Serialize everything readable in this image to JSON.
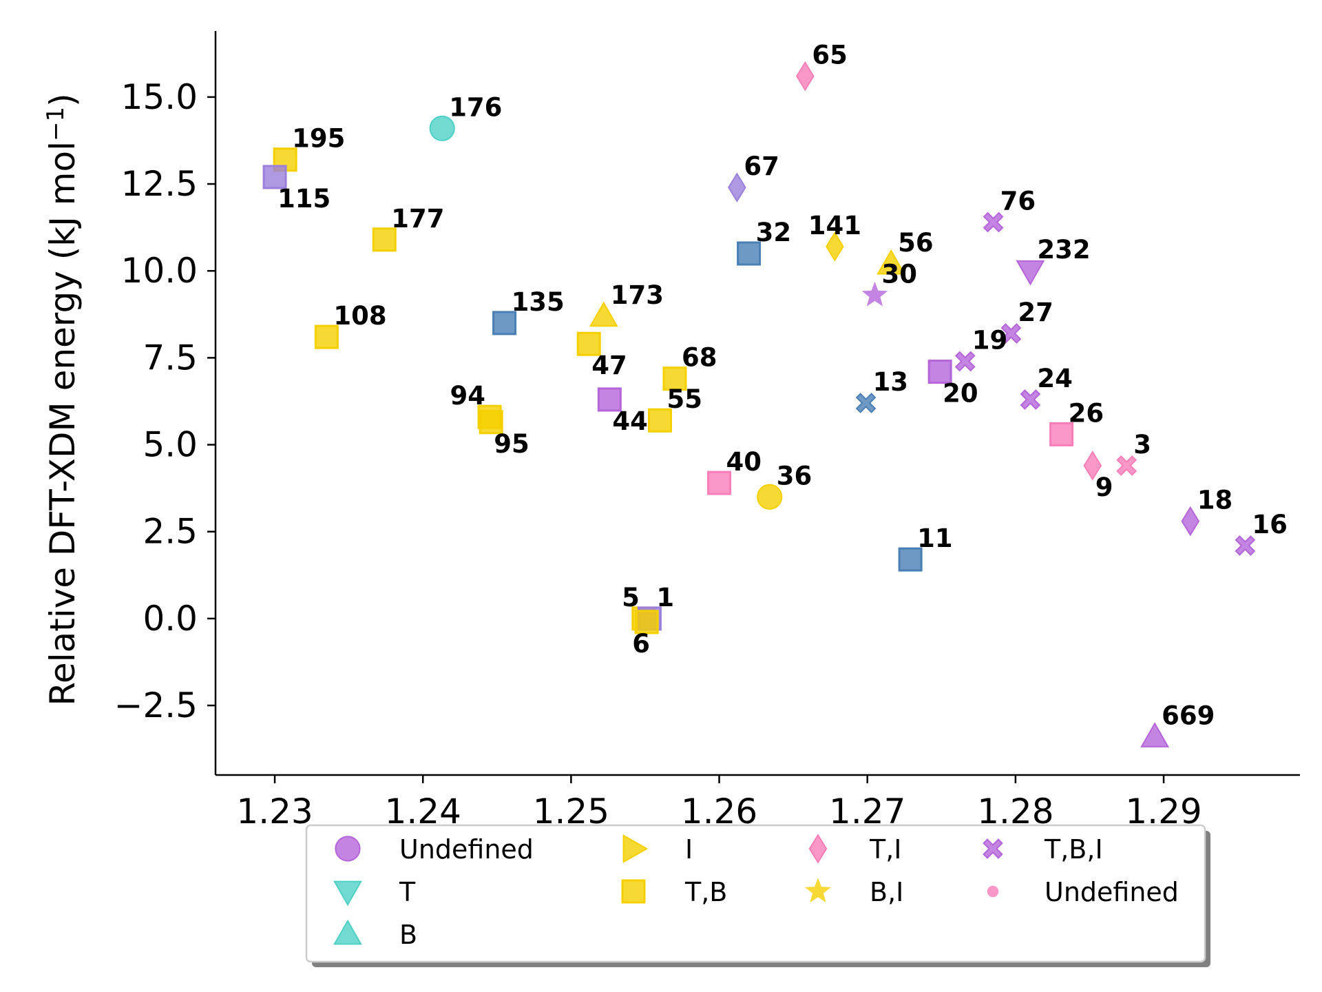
{
  "chart_data": {
    "type": "scatter",
    "title": "",
    "xlabel": "",
    "ylabel_main": "Relative DFT-XDM energy (kJ mol",
    "ylabel_sup": "−1",
    "ylabel_close": ")",
    "xlim": [
      1.226,
      1.2992
    ],
    "ylim": [
      -4.5,
      16.9
    ],
    "x_ticks": [
      1.23,
      1.24,
      1.25,
      1.26,
      1.27,
      1.28,
      1.29
    ],
    "x_tick_labels": [
      "1.23",
      "1.24",
      "1.25",
      "1.26",
      "1.27",
      "1.28",
      "1.29"
    ],
    "y_ticks": [
      -2.5,
      0.0,
      2.5,
      5.0,
      7.5,
      10.0,
      12.5,
      15.0
    ],
    "y_tick_labels": [
      "−2.5",
      "0.0",
      "2.5",
      "5.0",
      "7.5",
      "10.0",
      "12.5",
      "15.0"
    ],
    "grid": false,
    "legend_position": "bottom-center",
    "legend": [
      {
        "label": "Undefined",
        "marker": "circle",
        "color": "#b565d9"
      },
      {
        "label": "T",
        "marker": "triangle-down",
        "color": "#4fd1c5"
      },
      {
        "label": "B",
        "marker": "triangle-up",
        "color": "#4fd1c5"
      },
      {
        "label": "I",
        "marker": "triangle-right",
        "color": "#f5d000"
      },
      {
        "label": "T,B",
        "marker": "square",
        "color": "#f5d000"
      },
      {
        "label": "T,I",
        "marker": "diamond",
        "color": "#f77eb9"
      },
      {
        "label": "B,I",
        "marker": "star",
        "color": "#f5d000"
      },
      {
        "label": "T,B,I",
        "marker": "x",
        "color": "#b565d9"
      },
      {
        "label": "Undefined",
        "marker": "dot",
        "color": "#f77eb9"
      }
    ],
    "points": [
      {
        "label": "65",
        "x": 1.2658,
        "y": 15.6,
        "marker": "diamond",
        "color": "#f77eb9",
        "label_pos": "ur"
      },
      {
        "label": "176",
        "x": 1.2413,
        "y": 14.1,
        "marker": "circle",
        "color": "#4fd1c5",
        "label_pos": "ur"
      },
      {
        "label": "195",
        "x": 1.2307,
        "y": 13.2,
        "marker": "square",
        "color": "#f5d000",
        "label_pos": "ur"
      },
      {
        "label": "115",
        "x": 1.23,
        "y": 12.7,
        "marker": "square",
        "color": "#9b7fdb",
        "label_pos": "lr"
      },
      {
        "label": "67",
        "x": 1.2612,
        "y": 12.4,
        "marker": "diamond",
        "color": "#9b7fdb",
        "label_pos": "ur"
      },
      {
        "label": "76",
        "x": 1.2785,
        "y": 11.4,
        "marker": "x",
        "color": "#b565d9",
        "label_pos": "ur"
      },
      {
        "label": "177",
        "x": 1.2374,
        "y": 10.9,
        "marker": "square",
        "color": "#f5d000",
        "label_pos": "ur"
      },
      {
        "label": "141",
        "x": 1.2678,
        "y": 10.7,
        "marker": "diamond",
        "color": "#f5d000",
        "label_pos": "uc"
      },
      {
        "label": "32",
        "x": 1.262,
        "y": 10.5,
        "marker": "square",
        "color": "#4a7fb5",
        "label_pos": "ur"
      },
      {
        "label": "56",
        "x": 1.2716,
        "y": 10.2,
        "marker": "triangle-up",
        "color": "#f5d000",
        "label_pos": "ur"
      },
      {
        "label": "232",
        "x": 1.281,
        "y": 10.0,
        "marker": "triangle-down",
        "color": "#b565d9",
        "label_pos": "ur"
      },
      {
        "label": "30",
        "x": 1.2705,
        "y": 9.3,
        "marker": "star",
        "color": "#b565d9",
        "label_pos": "ur"
      },
      {
        "label": "173",
        "x": 1.2522,
        "y": 8.7,
        "marker": "triangle-up",
        "color": "#f5d000",
        "label_pos": "ur"
      },
      {
        "label": "135",
        "x": 1.2455,
        "y": 8.5,
        "marker": "square",
        "color": "#4a7fb5",
        "label_pos": "ur"
      },
      {
        "label": "27",
        "x": 1.2797,
        "y": 8.2,
        "marker": "x",
        "color": "#b565d9",
        "label_pos": "ur"
      },
      {
        "label": "108",
        "x": 1.2335,
        "y": 8.1,
        "marker": "square",
        "color": "#f5d000",
        "label_pos": "ur"
      },
      {
        "label": "47",
        "x": 1.2512,
        "y": 7.9,
        "marker": "square",
        "color": "#f5d000",
        "label_pos": "lr"
      },
      {
        "label": "19",
        "x": 1.2766,
        "y": 7.4,
        "marker": "x",
        "color": "#b565d9",
        "label_pos": "ur"
      },
      {
        "label": "20",
        "x": 1.2749,
        "y": 7.1,
        "marker": "square",
        "color": "#b565d9",
        "label_pos": "lr"
      },
      {
        "label": "68",
        "x": 1.257,
        "y": 6.9,
        "marker": "square",
        "color": "#f5d000",
        "label_pos": "ur"
      },
      {
        "label": "24",
        "x": 1.281,
        "y": 6.3,
        "marker": "x",
        "color": "#b565d9",
        "label_pos": "ur"
      },
      {
        "label": "44",
        "x": 1.2526,
        "y": 6.3,
        "marker": "square",
        "color": "#b565d9",
        "label_pos": "lr"
      },
      {
        "label": "13",
        "x": 1.2699,
        "y": 6.2,
        "marker": "x",
        "color": "#4a7fb5",
        "label_pos": "ur"
      },
      {
        "label": "94",
        "x": 1.2445,
        "y": 5.8,
        "marker": "square",
        "color": "#f5d000",
        "label_pos": "ul"
      },
      {
        "label": "95",
        "x": 1.2446,
        "y": 5.65,
        "marker": "square",
        "color": "#f5d000",
        "label_pos": "lr"
      },
      {
        "label": "55",
        "x": 1.256,
        "y": 5.7,
        "marker": "square",
        "color": "#f5d000",
        "label_pos": "ur"
      },
      {
        "label": "26",
        "x": 1.2831,
        "y": 5.3,
        "marker": "square",
        "color": "#f77eb9",
        "label_pos": "ur"
      },
      {
        "label": "3",
        "x": 1.2875,
        "y": 4.4,
        "marker": "x",
        "color": "#f77eb9",
        "label_pos": "ur"
      },
      {
        "label": "9",
        "x": 1.2852,
        "y": 4.4,
        "marker": "diamond",
        "color": "#f77eb9",
        "label_pos": "lr"
      },
      {
        "label": "40",
        "x": 1.26,
        "y": 3.9,
        "marker": "square",
        "color": "#f77eb9",
        "label_pos": "ur"
      },
      {
        "label": "36",
        "x": 1.2634,
        "y": 3.5,
        "marker": "circle",
        "color": "#f5d000",
        "label_pos": "ur"
      },
      {
        "label": "18",
        "x": 1.2918,
        "y": 2.8,
        "marker": "diamond",
        "color": "#b565d9",
        "label_pos": "ur"
      },
      {
        "label": "16",
        "x": 1.2955,
        "y": 2.1,
        "marker": "x",
        "color": "#b565d9",
        "label_pos": "ur"
      },
      {
        "label": "11",
        "x": 1.2729,
        "y": 1.7,
        "marker": "square",
        "color": "#4a7fb5",
        "label_pos": "ur"
      },
      {
        "label": "5",
        "x": 1.2549,
        "y": 0.0,
        "marker": "square",
        "color": "#f5d000",
        "label_pos": "ul"
      },
      {
        "label": "1",
        "x": 1.2553,
        "y": 0.0,
        "marker": "square",
        "color": "#9b7fdb",
        "label_pos": "ur"
      },
      {
        "label": "6",
        "x": 1.2551,
        "y": -0.1,
        "marker": "square",
        "color": "#f5d000",
        "label_pos": "lc"
      },
      {
        "label": "669",
        "x": 1.2894,
        "y": -3.4,
        "marker": "triangle-up",
        "color": "#b565d9",
        "label_pos": "ur"
      }
    ]
  }
}
